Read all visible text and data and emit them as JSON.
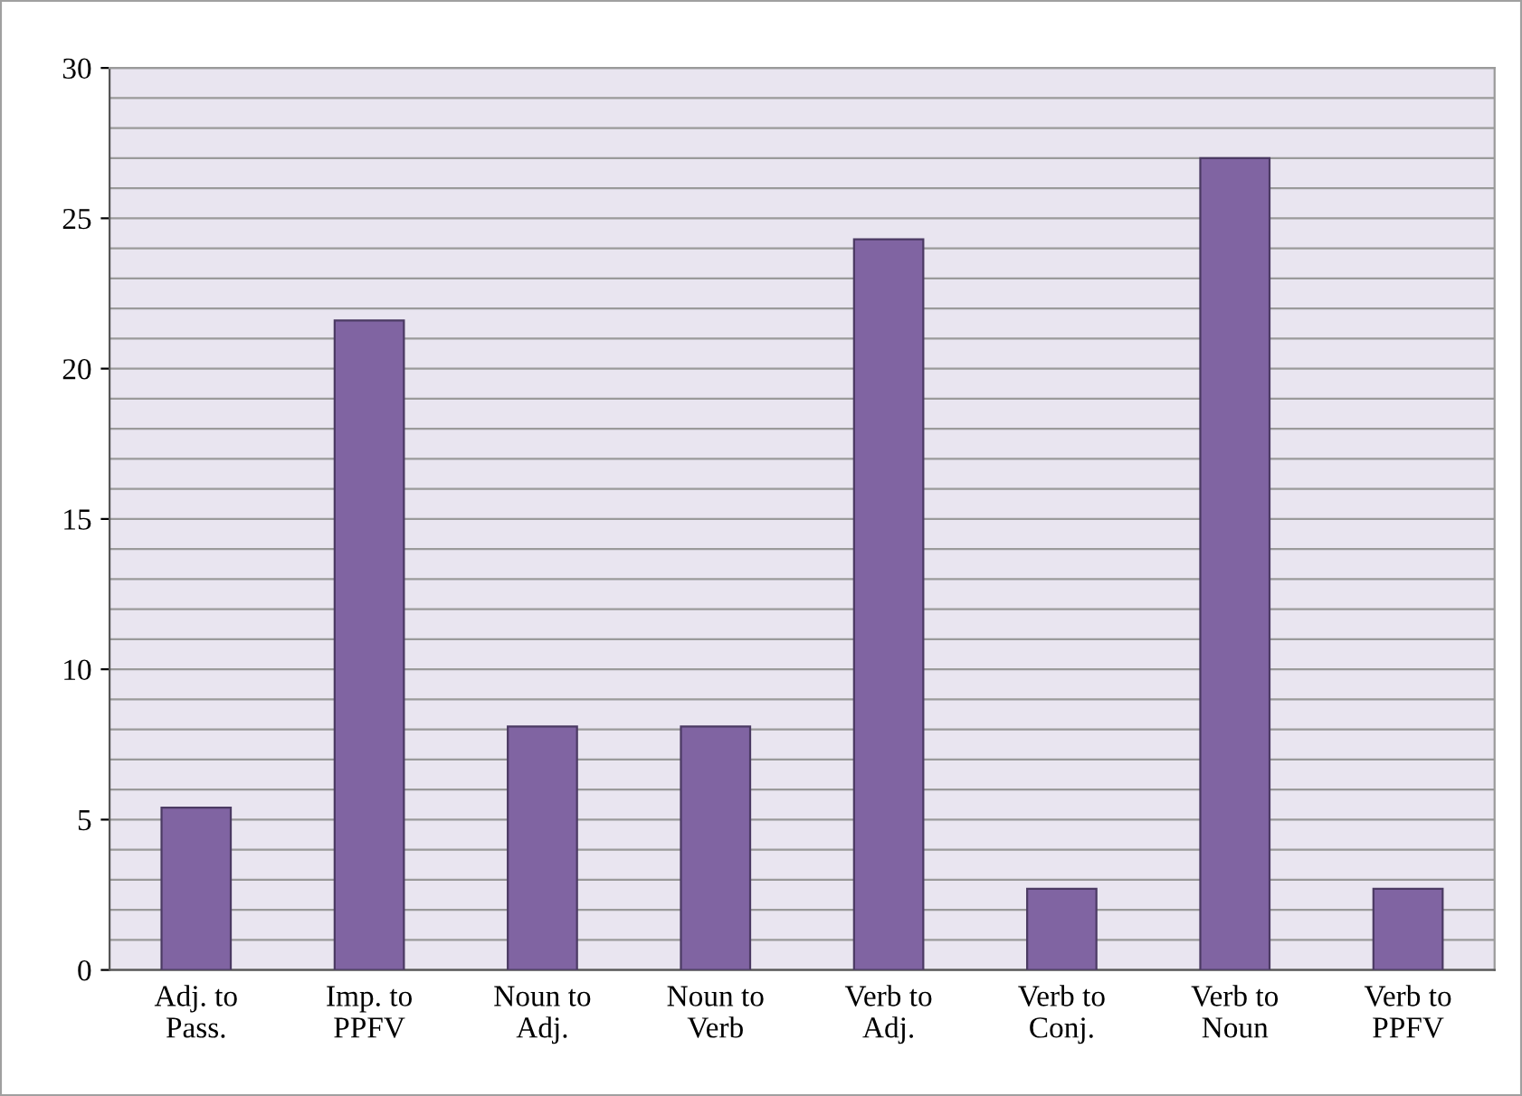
{
  "chart_data": {
    "type": "bar",
    "categories": [
      "Adj. to\nPass.",
      "Imp. to\nPPFV",
      "Noun to\nAdj.",
      "Noun to\nVerb",
      "Verb to\nAdj.",
      "Verb to\nConj.",
      "Verb to\nNoun",
      "Verb to\nPPFV"
    ],
    "values": [
      5.4,
      21.6,
      8.1,
      8.1,
      24.3,
      2.7,
      27.0,
      2.7
    ],
    "color": "#8064a2",
    "ylim": [
      0,
      30
    ],
    "yticks": [
      0,
      {
        "value": 1,
        "label": null
      },
      {
        "value": 2,
        "label": null
      },
      {
        "value": 3,
        "label": null
      },
      {
        "value": 4,
        "label": null
      },
      5,
      {
        "value": 6,
        "label": null
      },
      {
        "value": 7,
        "label": null
      },
      {
        "value": 8,
        "label": null
      },
      {
        "value": 9,
        "label": null
      },
      10,
      {
        "value": 11,
        "label": null
      },
      {
        "value": 12,
        "label": null
      },
      {
        "value": 13,
        "label": null
      },
      {
        "value": 14,
        "label": null
      },
      15,
      {
        "value": 16,
        "label": null
      },
      {
        "value": 17,
        "label": null
      },
      {
        "value": 18,
        "label": null
      },
      {
        "value": 19,
        "label": null
      },
      20,
      {
        "value": 21,
        "label": null
      },
      {
        "value": 22,
        "label": null
      },
      {
        "value": 23,
        "label": null
      },
      {
        "value": 24,
        "label": null
      },
      25,
      {
        "value": 26,
        "label": null
      },
      {
        "value": 27,
        "label": null
      },
      {
        "value": 28,
        "label": null
      },
      {
        "value": 29,
        "label": null
      },
      30
    ],
    "grid": "y"
  }
}
